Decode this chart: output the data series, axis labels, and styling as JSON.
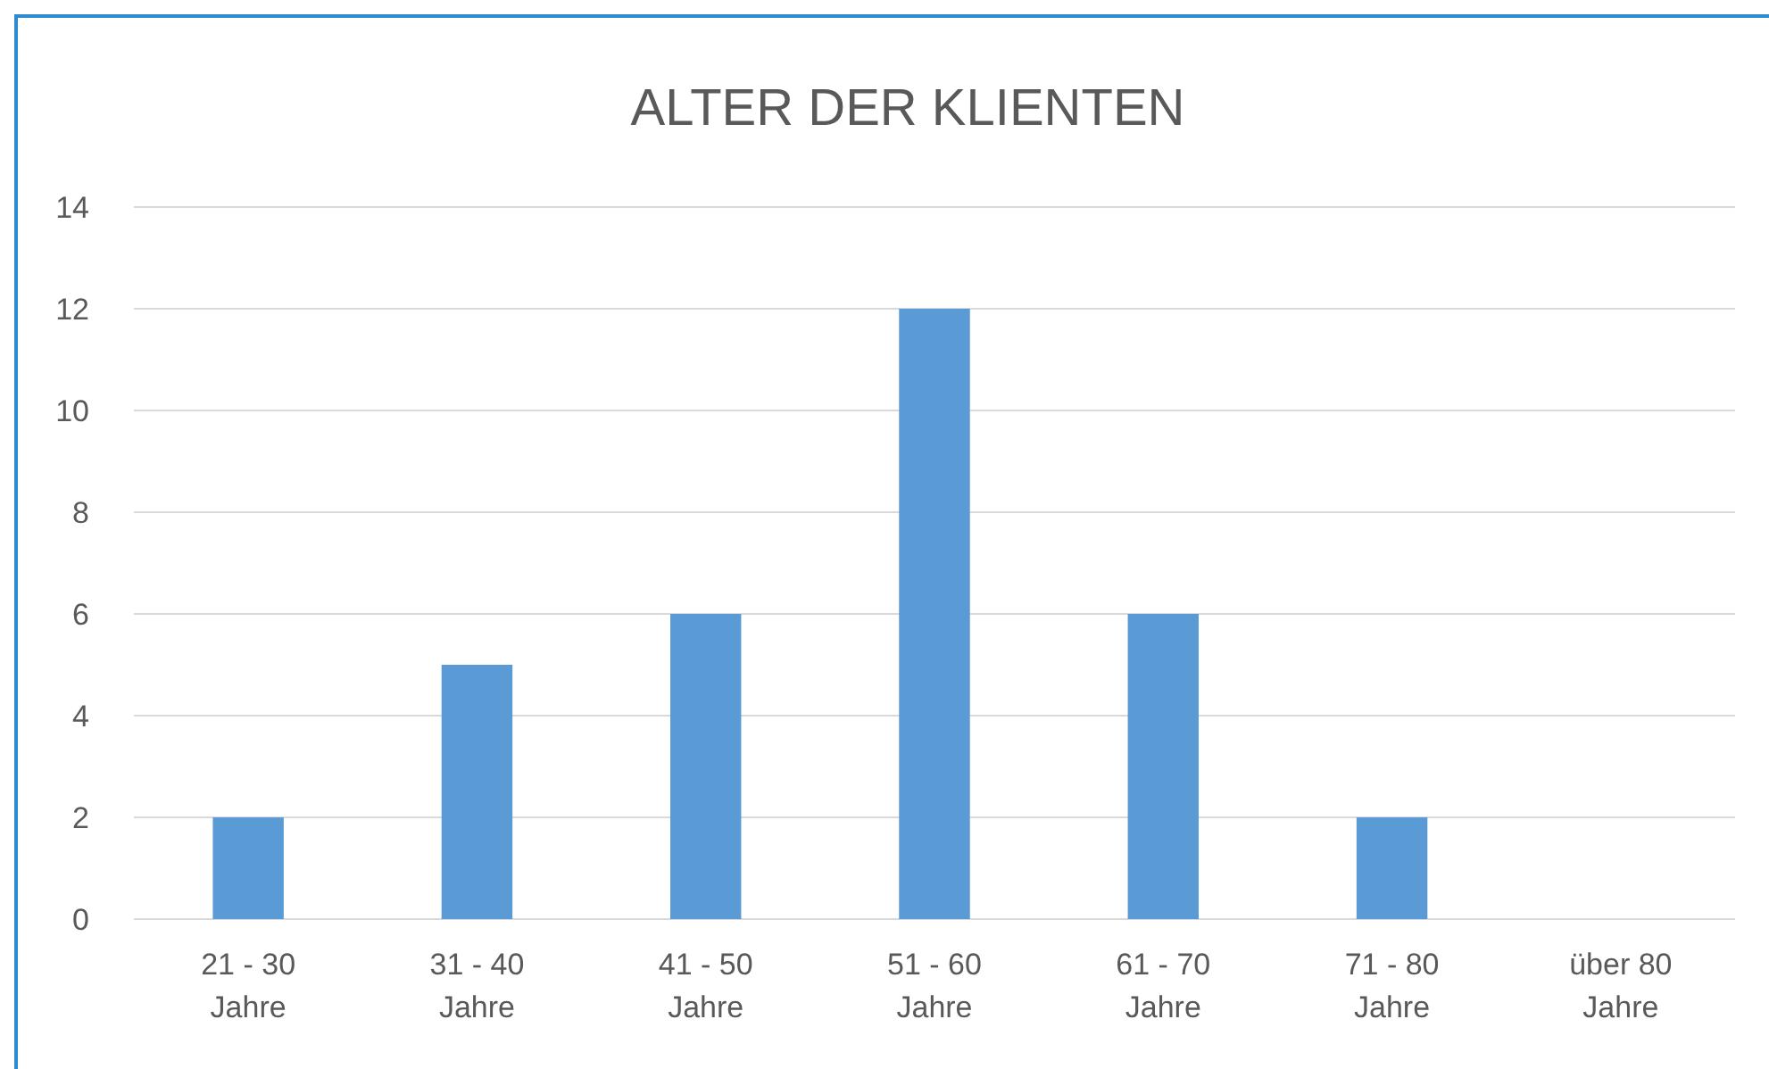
{
  "chart_data": {
    "type": "bar",
    "title": "ALTER DER KLIENTEN",
    "categories": [
      "21 - 30 Jahre",
      "31 - 40 Jahre",
      "41 - 50 Jahre",
      "51 - 60 Jahre",
      "61 - 70 Jahre",
      "71 - 80 Jahre",
      "über 80 Jahre"
    ],
    "values": [
      2,
      5,
      6,
      12,
      6,
      2,
      0
    ],
    "color": "#5b9bd5",
    "ylim": [
      0,
      14
    ],
    "yticks": [
      0,
      2,
      4,
      6,
      8,
      10,
      12,
      14
    ],
    "grid": "y"
  }
}
